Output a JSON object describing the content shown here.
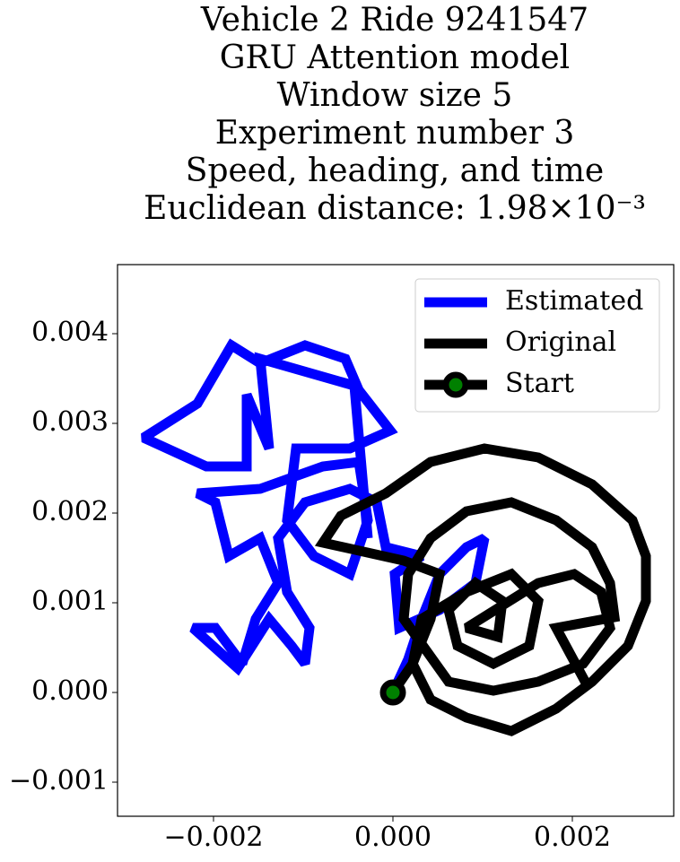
{
  "chart_data": {
    "type": "line",
    "title": [
      "Vehicle 2 Ride 9241547",
      "GRU Attention model",
      "Window size 5",
      "Experiment number 3",
      "Speed, heading, and time",
      "Euclidean distance: 1.98×10⁻³"
    ],
    "xlim": [
      -0.00307,
      0.00313
    ],
    "ylim": [
      -0.00138,
      0.00477
    ],
    "xticks": [
      {
        "value": -0.002,
        "label": "−0.002"
      },
      {
        "value": 0,
        "label": "0.000"
      },
      {
        "value": 0.002,
        "label": "0.002"
      }
    ],
    "yticks": [
      {
        "value": -0.001,
        "label": "−0.001"
      },
      {
        "value": 0,
        "label": "0.000"
      },
      {
        "value": 0.001,
        "label": "0.001"
      },
      {
        "value": 0.002,
        "label": "0.002"
      },
      {
        "value": 0.003,
        "label": "0.003"
      },
      {
        "value": 0.004,
        "label": "0.004"
      }
    ],
    "legend": "upper right",
    "series": [
      {
        "name": "Estimated",
        "color": "#0000ff",
        "x": [
          0,
          0.00017,
          0.00032,
          0.00052,
          0.00082,
          0.00102,
          0.00092,
          0.00052,
          7e-05,
          2e-05,
          0.00032,
          -8e-05,
          -0.00018,
          -0.00048,
          -0.00098,
          -0.00128,
          -0.00118,
          -0.00093,
          -0.00098,
          -0.00113,
          -0.00138,
          -0.00173,
          -0.00223,
          -0.00198,
          -0.00168,
          -0.00153,
          -0.00128,
          -0.00148,
          -0.00183,
          -0.00198,
          -0.00218,
          -0.00148,
          -0.00078,
          -0.00038,
          -0.00028,
          -0.00048,
          -0.00088,
          -0.00118,
          -0.00108,
          -0.00048,
          -3e-05,
          -0.00038,
          -0.00053,
          -0.00098,
          -0.00148,
          -0.0018,
          -0.00218,
          -0.00278,
          -0.00208,
          -0.00163,
          -0.00163,
          -0.00138,
          -0.00148,
          -0.00043,
          -0.00028
        ],
        "y": [
          0,
          0.00037,
          0.00082,
          0.00132,
          0.00162,
          0.00172,
          0.00122,
          0.00092,
          0.00072,
          0.00132,
          0.00152,
          0.00162,
          0.00212,
          0.00227,
          0.00212,
          0.00172,
          0.00112,
          0.00072,
          0.00032,
          0.00052,
          0.00082,
          0.00027,
          0.00072,
          0.00072,
          0.00032,
          0.00082,
          0.00122,
          0.00172,
          0.00152,
          0.00212,
          0.00222,
          0.00227,
          0.00252,
          0.00257,
          0.00192,
          0.00132,
          0.00152,
          0.00192,
          0.00272,
          0.00272,
          0.00292,
          0.00337,
          0.00372,
          0.00387,
          0.00367,
          0.00387,
          0.00322,
          0.00284,
          0.00252,
          0.00252,
          0.00332,
          0.00272,
          0.00372,
          0.00342,
          0.00172
        ]
      },
      {
        "name": "Original",
        "color": "#000000",
        "x": [
          0,
          0.00022,
          0.00042,
          0.00052,
          0.00012,
          -0.00078,
          -0.00058,
          -8e-05,
          0.00042,
          0.00102,
          0.00162,
          0.00222,
          0.00267,
          0.00282,
          0.00282,
          0.00262,
          0.00222,
          0.00182,
          0.00132,
          0.00082,
          0.00042,
          0.00022,
          0.00032,
          0.00082,
          0.00132,
          0.00162,
          0.00152,
          0.00112,
          0.00072,
          0.00062,
          0.00092,
          0.00122,
          0.00117,
          0.00082,
          0.00162,
          0.00202,
          0.00232,
          0.00242,
          0.00212,
          0.00162,
          0.00112,
          0.00062,
          0.00012,
          0.00017,
          0.00042,
          0.00082,
          0.00132,
          0.00182,
          0.00222,
          0.00242,
          0.00247,
          0.00182,
          0.00217
        ],
        "y": [
          0,
          0.00032,
          0.00082,
          0.00132,
          0.00147,
          0.00167,
          0.00197,
          0.00222,
          0.00257,
          0.00272,
          0.00262,
          0.00232,
          0.00192,
          0.00152,
          0.00102,
          0.00052,
          0.00012,
          -0.00018,
          -0.00043,
          -0.00028,
          -8e-05,
          0.00032,
          0.00082,
          0.00112,
          0.00132,
          0.00102,
          0.00052,
          0.00032,
          0.00052,
          0.00092,
          0.00122,
          0.00102,
          0.00062,
          0.00072,
          0.00122,
          0.00132,
          0.00112,
          0.00072,
          0.00032,
          0.00012,
          2e-05,
          0.00012,
          0.00082,
          0.00132,
          0.00172,
          0.00202,
          0.00212,
          0.00192,
          0.00162,
          0.00122,
          0.00084,
          0.00072,
          7e-05
        ]
      },
      {
        "name": "Start",
        "color": "#000000",
        "marker_color": "#008000",
        "x": [
          0
        ],
        "y": [
          0
        ]
      }
    ]
  }
}
